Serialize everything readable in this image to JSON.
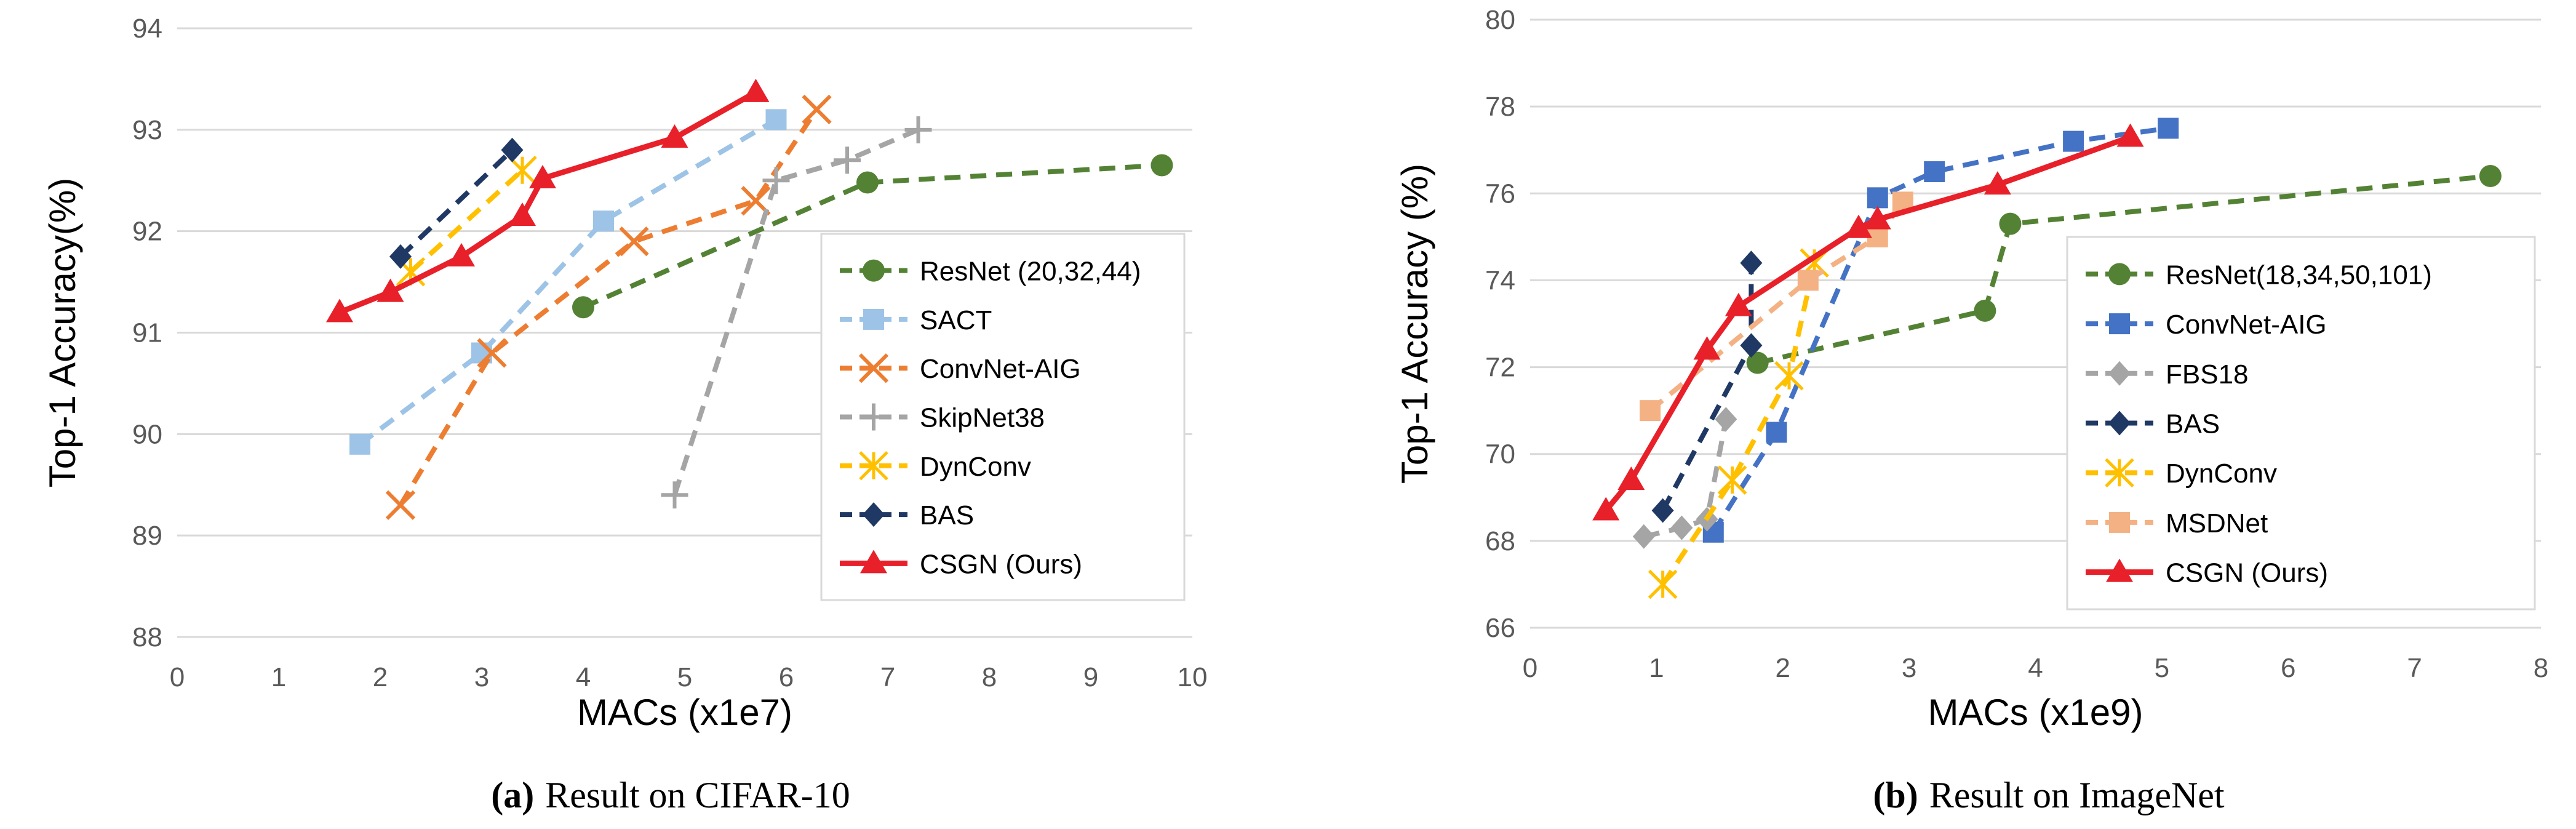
{
  "chart_data": [
    {
      "type": "line",
      "caption_letter": "(a)",
      "caption_text": "Result on CIFAR-10",
      "xlabel": "MACs (x1e7)",
      "ylabel": "Top-1 Accuracy(%)",
      "xlim": [
        0,
        10
      ],
      "ylim": [
        88,
        94
      ],
      "xticks": [
        0,
        1,
        2,
        3,
        4,
        5,
        6,
        7,
        8,
        9,
        10
      ],
      "yticks": [
        88,
        89,
        90,
        91,
        92,
        93,
        94
      ],
      "grid": "horizontal",
      "legend_position": "right",
      "series": [
        {
          "name": "ResNet (20,32,44)",
          "color": "#548235",
          "dash": "dashed",
          "marker": "circle",
          "x": [
            4.0,
            6.8,
            9.7
          ],
          "y": [
            91.25,
            92.48,
            92.65
          ]
        },
        {
          "name": "SACT",
          "color": "#9DC3E6",
          "dash": "dashed",
          "marker": "square",
          "x": [
            1.8,
            3.0,
            4.2,
            5.9
          ],
          "y": [
            89.9,
            90.8,
            92.1,
            93.1
          ]
        },
        {
          "name": "ConvNet-AIG",
          "color": "#ED7D31",
          "dash": "dashed",
          "marker": "x",
          "x": [
            2.2,
            3.1,
            4.5,
            5.7,
            6.3
          ],
          "y": [
            89.3,
            90.8,
            91.9,
            92.3,
            93.2
          ]
        },
        {
          "name": "SkipNet38",
          "color": "#A5A5A5",
          "dash": "dashed",
          "marker": "plus",
          "x": [
            4.9,
            5.9,
            6.6,
            7.3
          ],
          "y": [
            89.4,
            92.5,
            92.7,
            93.0
          ]
        },
        {
          "name": "DynConv",
          "color": "#FFC000",
          "dash": "dashed",
          "marker": "asterisk",
          "x": [
            2.3,
            3.4
          ],
          "y": [
            91.6,
            92.6
          ]
        },
        {
          "name": "BAS",
          "color": "#203864",
          "dash": "dashed",
          "marker": "diamond",
          "x": [
            2.2,
            3.3
          ],
          "y": [
            91.75,
            92.8
          ]
        },
        {
          "name": "CSGN (Ours)",
          "color": "#E8202A",
          "dash": "solid",
          "marker": "triangle",
          "x": [
            1.6,
            2.1,
            2.8,
            3.4,
            3.6,
            4.9,
            5.7
          ],
          "y": [
            91.2,
            91.4,
            91.75,
            92.15,
            92.52,
            92.92,
            93.37
          ]
        }
      ]
    },
    {
      "type": "line",
      "caption_letter": "(b)",
      "caption_text": "Result on ImageNet",
      "xlabel": "MACs (x1e9)",
      "ylabel": "Top-1 Accuracy (%)",
      "xlim": [
        0,
        8
      ],
      "ylim": [
        66,
        80
      ],
      "xticks": [
        0,
        1,
        2,
        3,
        4,
        5,
        6,
        7,
        8
      ],
      "yticks": [
        66,
        68,
        70,
        72,
        74,
        76,
        78,
        80
      ],
      "grid": "horizontal",
      "legend_position": "right",
      "series": [
        {
          "name": "ResNet(18,34,50,101)",
          "color": "#548235",
          "dash": "dashed",
          "marker": "circle",
          "x": [
            1.8,
            3.6,
            3.8,
            7.6
          ],
          "y": [
            72.1,
            73.3,
            75.3,
            76.4
          ]
        },
        {
          "name": "ConvNet-AIG",
          "color": "#4472C4",
          "dash": "dashed",
          "marker": "square",
          "x": [
            1.45,
            1.95,
            2.75,
            3.2,
            4.3,
            5.05
          ],
          "y": [
            68.2,
            70.5,
            75.9,
            76.5,
            77.2,
            77.5
          ]
        },
        {
          "name": "FBS18",
          "color": "#A5A5A5",
          "dash": "dashed",
          "marker": "diamond",
          "x": [
            0.9,
            1.2,
            1.4,
            1.55
          ],
          "y": [
            68.1,
            68.3,
            68.5,
            70.8
          ]
        },
        {
          "name": "BAS",
          "color": "#203864",
          "dash": "dashed",
          "marker": "diamond",
          "x": [
            1.05,
            1.75,
            1.75
          ],
          "y": [
            68.7,
            72.5,
            74.4
          ]
        },
        {
          "name": "DynConv",
          "color": "#FFC000",
          "dash": "dashed",
          "marker": "asterisk",
          "x": [
            1.05,
            1.6,
            2.05,
            2.25
          ],
          "y": [
            67.0,
            69.4,
            71.8,
            74.4
          ]
        },
        {
          "name": "MSDNet",
          "color": "#F4B183",
          "dash": "dashed",
          "marker": "square",
          "x": [
            0.95,
            2.2,
            2.75,
            2.95
          ],
          "y": [
            71.0,
            74.0,
            75.0,
            75.8
          ]
        },
        {
          "name": "CSGN (Ours)",
          "color": "#E8202A",
          "dash": "solid",
          "marker": "triangle",
          "x": [
            0.6,
            0.8,
            1.4,
            1.65,
            2.6,
            2.75,
            3.7,
            4.75
          ],
          "y": [
            68.7,
            69.4,
            72.4,
            73.4,
            75.2,
            75.4,
            76.2,
            77.3
          ]
        }
      ]
    }
  ]
}
